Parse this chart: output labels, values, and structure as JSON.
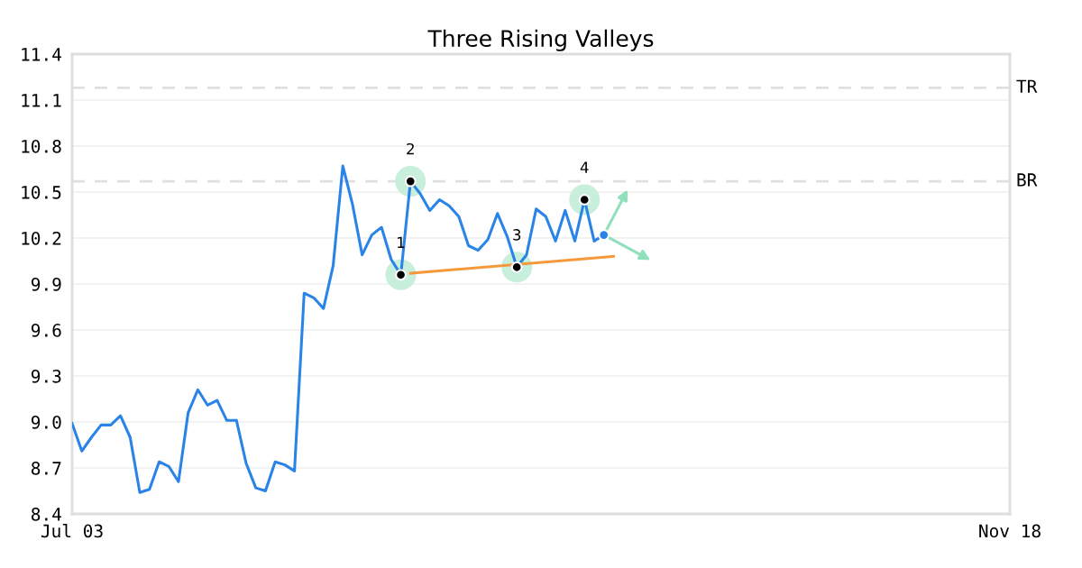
{
  "chart_data": {
    "type": "line",
    "title": "Three Rising Valleys",
    "categories": [
      "Jul 03",
      null,
      null,
      null,
      null,
      null,
      null,
      null,
      null,
      null,
      null,
      null,
      null,
      null,
      null,
      null,
      null,
      null,
      null,
      null,
      null,
      null,
      null,
      null,
      null,
      null,
      null,
      null,
      null,
      null,
      null,
      null,
      null,
      null,
      null,
      null,
      null,
      null,
      null,
      null,
      null,
      null,
      null,
      null,
      null,
      null,
      null,
      null,
      null,
      null,
      null,
      null,
      null,
      null,
      null,
      null,
      null,
      null,
      null,
      null,
      null,
      null,
      null,
      null,
      null,
      null,
      null,
      null,
      null,
      null,
      null,
      null,
      null,
      null,
      null,
      null,
      null,
      null,
      null,
      null,
      null,
      null,
      null,
      null,
      null,
      null,
      null,
      null,
      null,
      null,
      null,
      null,
      null,
      null,
      null,
      null,
      null,
      "Nov 18"
    ],
    "ylim": [
      8.4,
      11.4
    ],
    "yticks": [
      8.4,
      8.7,
      {
        "value": 9.0,
        "label": "9.0"
      },
      9.3,
      9.6,
      9.9,
      10.2,
      10.5,
      10.8,
      11.1,
      11.4
    ],
    "grid": "y",
    "legend": false,
    "line_style": "solid",
    "marker": "none",
    "series": [
      {
        "color": "#2a84e8",
        "values": [
          8.99,
          8.81,
          8.9,
          8.98,
          8.98,
          9.04,
          8.9,
          8.54,
          8.56,
          8.74,
          8.71,
          8.61,
          9.06,
          9.21,
          9.11,
          9.14,
          9.01,
          9.01,
          8.73,
          8.57,
          8.55,
          8.74,
          8.72,
          8.68,
          9.84,
          9.81,
          9.74,
          10.02,
          10.67,
          10.42,
          10.09,
          10.22,
          10.27,
          10.06,
          9.96,
          10.57,
          10.49,
          10.38,
          10.45,
          10.41,
          10.34,
          10.15,
          10.12,
          10.19,
          10.36,
          10.21,
          10.01,
          10.09,
          10.39,
          10.34,
          10.18,
          10.38,
          10.18,
          10.45,
          10.18,
          10.22,
          null,
          null,
          null,
          null,
          null,
          null,
          null,
          null,
          null,
          null,
          null,
          null,
          null,
          null,
          null,
          null,
          null,
          null,
          null,
          null,
          null,
          null,
          null,
          null,
          null,
          null,
          null,
          null,
          null,
          null,
          null,
          null,
          null,
          null,
          null,
          null,
          null,
          null,
          null,
          null,
          null,
          null
        ]
      },
      {
        "type": "line",
        "color": "#f59a3c",
        "values": [
          null,
          null,
          null,
          null,
          null,
          null,
          null,
          null,
          null,
          null,
          null,
          null,
          null,
          null,
          null,
          null,
          null,
          null,
          null,
          null,
          null,
          null,
          null,
          null,
          null,
          null,
          null,
          null,
          null,
          null,
          null,
          null,
          null,
          null,
          null,
          9.97,
          null,
          null,
          null,
          null,
          null,
          null,
          null,
          null,
          null,
          null,
          null,
          null,
          null,
          null,
          null,
          null,
          null,
          null,
          null,
          null,
          10.08,
          null,
          null,
          null,
          null,
          null,
          null,
          null,
          null,
          null,
          null,
          null,
          null,
          null,
          null,
          null,
          null,
          null,
          null,
          null,
          null,
          null,
          null,
          null,
          null,
          null,
          null,
          null,
          null,
          null,
          null,
          null,
          null,
          null,
          null,
          null,
          null,
          null,
          null,
          null,
          null,
          null
        ]
      },
      {
        "type": "bubble",
        "color": "#c8eedc",
        "marker": "circle",
        "values": [
          null,
          null,
          null,
          null,
          null,
          null,
          null,
          null,
          null,
          null,
          null,
          null,
          null,
          null,
          null,
          null,
          null,
          null,
          null,
          null,
          null,
          null,
          null,
          null,
          null,
          null,
          null,
          null,
          null,
          null,
          null,
          null,
          null,
          null,
          9.96,
          10.57,
          null,
          null,
          null,
          null,
          null,
          null,
          null,
          null,
          null,
          null,
          10.01,
          null,
          null,
          null,
          null,
          null,
          null,
          10.45,
          null,
          null,
          null,
          null,
          null,
          null,
          null,
          null,
          null,
          null,
          null,
          null,
          null,
          null,
          null,
          null,
          null,
          null,
          null,
          null,
          null,
          null,
          null,
          null,
          null,
          null,
          null,
          null,
          null,
          null,
          null,
          null,
          null,
          null,
          null,
          null,
          null,
          null,
          null,
          null,
          null,
          null,
          null,
          null
        ],
        "sizes": [
          null,
          null,
          null,
          null,
          null,
          null,
          null,
          null,
          null,
          null,
          null,
          null,
          null,
          null,
          null,
          null,
          null,
          null,
          null,
          null,
          null,
          null,
          null,
          null,
          null,
          null,
          null,
          null,
          null,
          null,
          null,
          null,
          null,
          null,
          1,
          1,
          null,
          null,
          null,
          null,
          null,
          null,
          null,
          null,
          null,
          null,
          1,
          null,
          null,
          null,
          null,
          null,
          null,
          1,
          null,
          null,
          null,
          null,
          null,
          null,
          null,
          null,
          null,
          null,
          null,
          null,
          null,
          null,
          null,
          null,
          null,
          null,
          null,
          null,
          null,
          null,
          null,
          null,
          null,
          null,
          null,
          null,
          null,
          null,
          null,
          null,
          null,
          null,
          null,
          null,
          null,
          null,
          null,
          null,
          null,
          null,
          null,
          null
        ]
      },
      {
        "type": "scatter",
        "name": "1",
        "marker": "circle",
        "color": "#000000",
        "values": [
          null,
          null,
          null,
          null,
          null,
          null,
          null,
          null,
          null,
          null,
          null,
          null,
          null,
          null,
          null,
          null,
          null,
          null,
          null,
          null,
          null,
          null,
          null,
          null,
          null,
          null,
          null,
          null,
          null,
          null,
          null,
          null,
          null,
          null,
          9.96,
          null,
          null,
          null,
          null,
          null,
          null,
          null,
          null,
          null,
          null,
          null,
          null,
          null,
          null,
          null,
          null,
          null,
          null,
          null,
          null,
          null,
          null,
          null,
          null,
          null,
          null,
          null,
          null,
          null,
          null,
          null,
          null,
          null,
          null,
          null,
          null,
          null,
          null,
          null,
          null,
          null,
          null,
          null,
          null,
          null,
          null,
          null,
          null,
          null,
          null,
          null,
          null,
          null,
          null,
          null,
          null,
          null,
          null,
          null,
          null,
          null,
          null,
          null
        ]
      },
      {
        "type": "scatter",
        "name": "2",
        "marker": "circle",
        "color": "#000000",
        "values": [
          null,
          null,
          null,
          null,
          null,
          null,
          null,
          null,
          null,
          null,
          null,
          null,
          null,
          null,
          null,
          null,
          null,
          null,
          null,
          null,
          null,
          null,
          null,
          null,
          null,
          null,
          null,
          null,
          null,
          null,
          null,
          null,
          null,
          null,
          null,
          10.57,
          null,
          null,
          null,
          null,
          null,
          null,
          null,
          null,
          null,
          null,
          null,
          null,
          null,
          null,
          null,
          null,
          null,
          null,
          null,
          null,
          null,
          null,
          null,
          null,
          null,
          null,
          null,
          null,
          null,
          null,
          null,
          null,
          null,
          null,
          null,
          null,
          null,
          null,
          null,
          null,
          null,
          null,
          null,
          null,
          null,
          null,
          null,
          null,
          null,
          null,
          null,
          null,
          null,
          null,
          null,
          null,
          null,
          null,
          null,
          null,
          null,
          null
        ]
      },
      {
        "type": "scatter",
        "name": "3",
        "marker": "circle",
        "color": "#000000",
        "values": [
          null,
          null,
          null,
          null,
          null,
          null,
          null,
          null,
          null,
          null,
          null,
          null,
          null,
          null,
          null,
          null,
          null,
          null,
          null,
          null,
          null,
          null,
          null,
          null,
          null,
          null,
          null,
          null,
          null,
          null,
          null,
          null,
          null,
          null,
          null,
          null,
          null,
          null,
          null,
          null,
          null,
          null,
          null,
          null,
          null,
          null,
          10.01,
          null,
          null,
          null,
          null,
          null,
          null,
          null,
          null,
          null,
          null,
          null,
          null,
          null,
          null,
          null,
          null,
          null,
          null,
          null,
          null,
          null,
          null,
          null,
          null,
          null,
          null,
          null,
          null,
          null,
          null,
          null,
          null,
          null,
          null,
          null,
          null,
          null,
          null,
          null,
          null,
          null,
          null,
          null,
          null,
          null,
          null,
          null,
          null,
          null,
          null,
          null
        ]
      },
      {
        "type": "scatter",
        "name": "4",
        "marker": "circle",
        "color": "#000000",
        "values": [
          null,
          null,
          null,
          null,
          null,
          null,
          null,
          null,
          null,
          null,
          null,
          null,
          null,
          null,
          null,
          null,
          null,
          null,
          null,
          null,
          null,
          null,
          null,
          null,
          null,
          null,
          null,
          null,
          null,
          null,
          null,
          null,
          null,
          null,
          null,
          null,
          null,
          null,
          null,
          null,
          null,
          null,
          null,
          null,
          null,
          null,
          null,
          null,
          null,
          null,
          null,
          null,
          null,
          10.45,
          null,
          null,
          null,
          null,
          null,
          null,
          null,
          null,
          null,
          null,
          null,
          null,
          null,
          null,
          null,
          null,
          null,
          null,
          null,
          null,
          null,
          null,
          null,
          null,
          null,
          null,
          null,
          null,
          null,
          null,
          null,
          null,
          null,
          null,
          null,
          null,
          null,
          null,
          null,
          null,
          null,
          null,
          null,
          null
        ]
      },
      {
        "type": "scatter",
        "marker": "circle",
        "color": "#2a84e8",
        "values": [
          null,
          null,
          null,
          null,
          null,
          null,
          null,
          null,
          null,
          null,
          null,
          null,
          null,
          null,
          null,
          null,
          null,
          null,
          null,
          null,
          null,
          null,
          null,
          null,
          null,
          null,
          null,
          null,
          null,
          null,
          null,
          null,
          null,
          null,
          null,
          null,
          null,
          null,
          null,
          null,
          null,
          null,
          null,
          null,
          null,
          null,
          null,
          null,
          null,
          null,
          null,
          null,
          null,
          null,
          null,
          10.22,
          null,
          null,
          null,
          null,
          null,
          null,
          null,
          null,
          null,
          null,
          null,
          null,
          null,
          null,
          null,
          null,
          null,
          null,
          null,
          null,
          null,
          null,
          null,
          null,
          null,
          null,
          null,
          null,
          null,
          null,
          null,
          null,
          null,
          null,
          null,
          null,
          null,
          null,
          null,
          null,
          null,
          null
        ]
      }
    ],
    "ref_lines": [
      {
        "axis": "y",
        "value": 11.18,
        "label": "TR",
        "color": "#e0e0e0",
        "line_style": "dashed"
      },
      {
        "axis": "y",
        "value": 10.57,
        "label": "BR",
        "color": "#e0e0e0",
        "line_style": "dashed"
      }
    ]
  }
}
